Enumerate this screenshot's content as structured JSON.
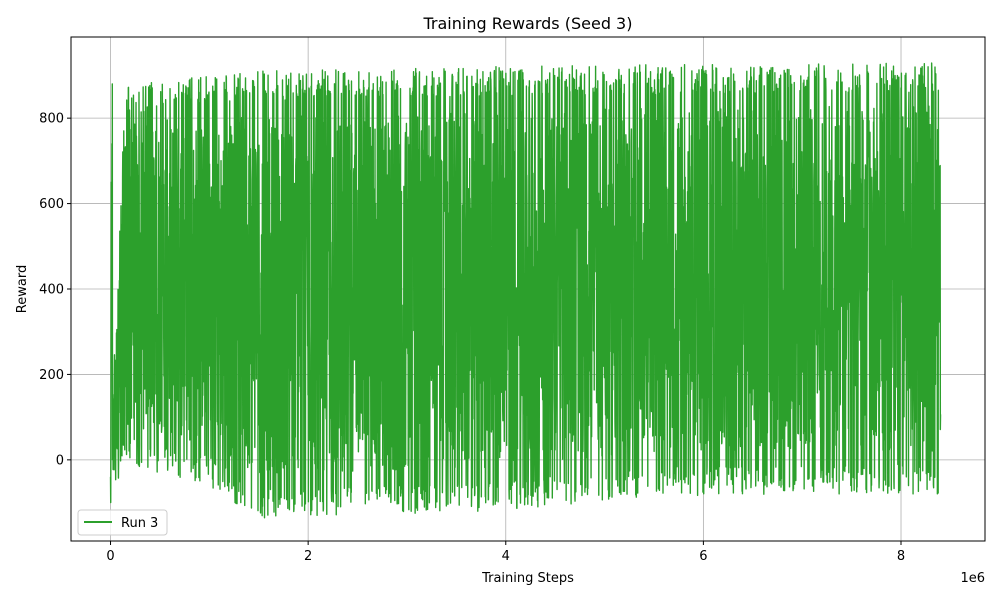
{
  "chart_data": {
    "type": "line",
    "title": "Training Rewards (Seed 3)",
    "xlabel": "Training Steps",
    "ylabel": "Reward",
    "x_offset_label": "1e6",
    "xlim": [
      -400000,
      8850000
    ],
    "ylim": [
      -190,
      990
    ],
    "x_ticks": [
      0,
      2000000,
      4000000,
      6000000,
      8000000
    ],
    "x_tick_labels": [
      "0",
      "2",
      "4",
      "6",
      "8"
    ],
    "y_ticks": [
      0,
      200,
      400,
      600,
      800
    ],
    "y_tick_labels": [
      "0",
      "200",
      "400",
      "600",
      "800"
    ],
    "grid": true,
    "legend_position": "lower-left",
    "series": [
      {
        "name": "Run 3",
        "color": "#2ca02c",
        "x_start": 0,
        "x_end": 8400000,
        "num_points": 4200,
        "initial_values": [
          -40,
          -100,
          60,
          350,
          650,
          300,
          500,
          740,
          250,
          880
        ],
        "envelope": [
          {
            "x": 0,
            "min": -100,
            "max": 60
          },
          {
            "x": 150000,
            "min": -10,
            "max": 880
          },
          {
            "x": 1000000,
            "min": -60,
            "max": 900
          },
          {
            "x": 1500000,
            "min": -140,
            "max": 910
          },
          {
            "x": 3700000,
            "min": -125,
            "max": 920
          },
          {
            "x": 5500000,
            "min": -85,
            "max": 925
          },
          {
            "x": 8400000,
            "min": -80,
            "max": 930
          }
        ]
      }
    ]
  }
}
